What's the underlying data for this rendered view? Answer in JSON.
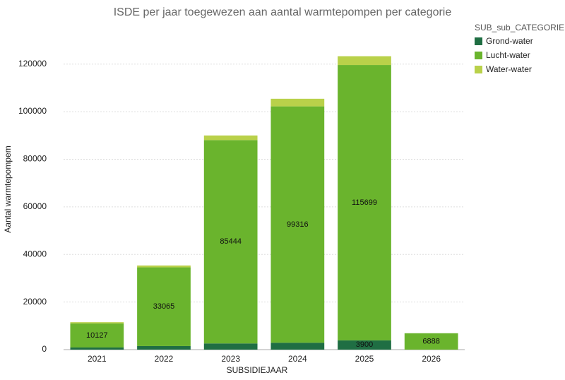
{
  "chart_data": {
    "type": "stacked_bar",
    "title": "ISDE per jaar toegewezen aan aantal warmtepompen per categorie",
    "x_label": "SUBSIDIEJAAR",
    "y_label": "Aantal warmtepompem",
    "legend_title": "SUB_sub_CATEGORIE",
    "categories": [
      "2021",
      "2022",
      "2023",
      "2024",
      "2025",
      "2026"
    ],
    "series": [
      {
        "name": "Grond-water",
        "color": "#1f6e43",
        "values": [
          900,
          1500,
          2600,
          2900,
          3900,
          0
        ],
        "value_labels": [
          null,
          null,
          null,
          null,
          "3900",
          null
        ]
      },
      {
        "name": "Lucht-water",
        "color": "#6ab42d",
        "values": [
          10127,
          33065,
          85444,
          99316,
          115699,
          6888
        ],
        "value_labels": [
          "10127",
          "33065",
          "85444",
          "99316",
          "115699",
          "6888"
        ]
      },
      {
        "name": "Water-water",
        "color": "#b9d14a",
        "values": [
          500,
          800,
          1950,
          3200,
          3700,
          0
        ],
        "value_labels": [
          null,
          null,
          null,
          null,
          null,
          null
        ]
      }
    ],
    "ylim": [
      0,
      130000
    ],
    "yticks": [
      0,
      20000,
      40000,
      60000,
      80000,
      100000,
      120000
    ],
    "grid": true
  }
}
